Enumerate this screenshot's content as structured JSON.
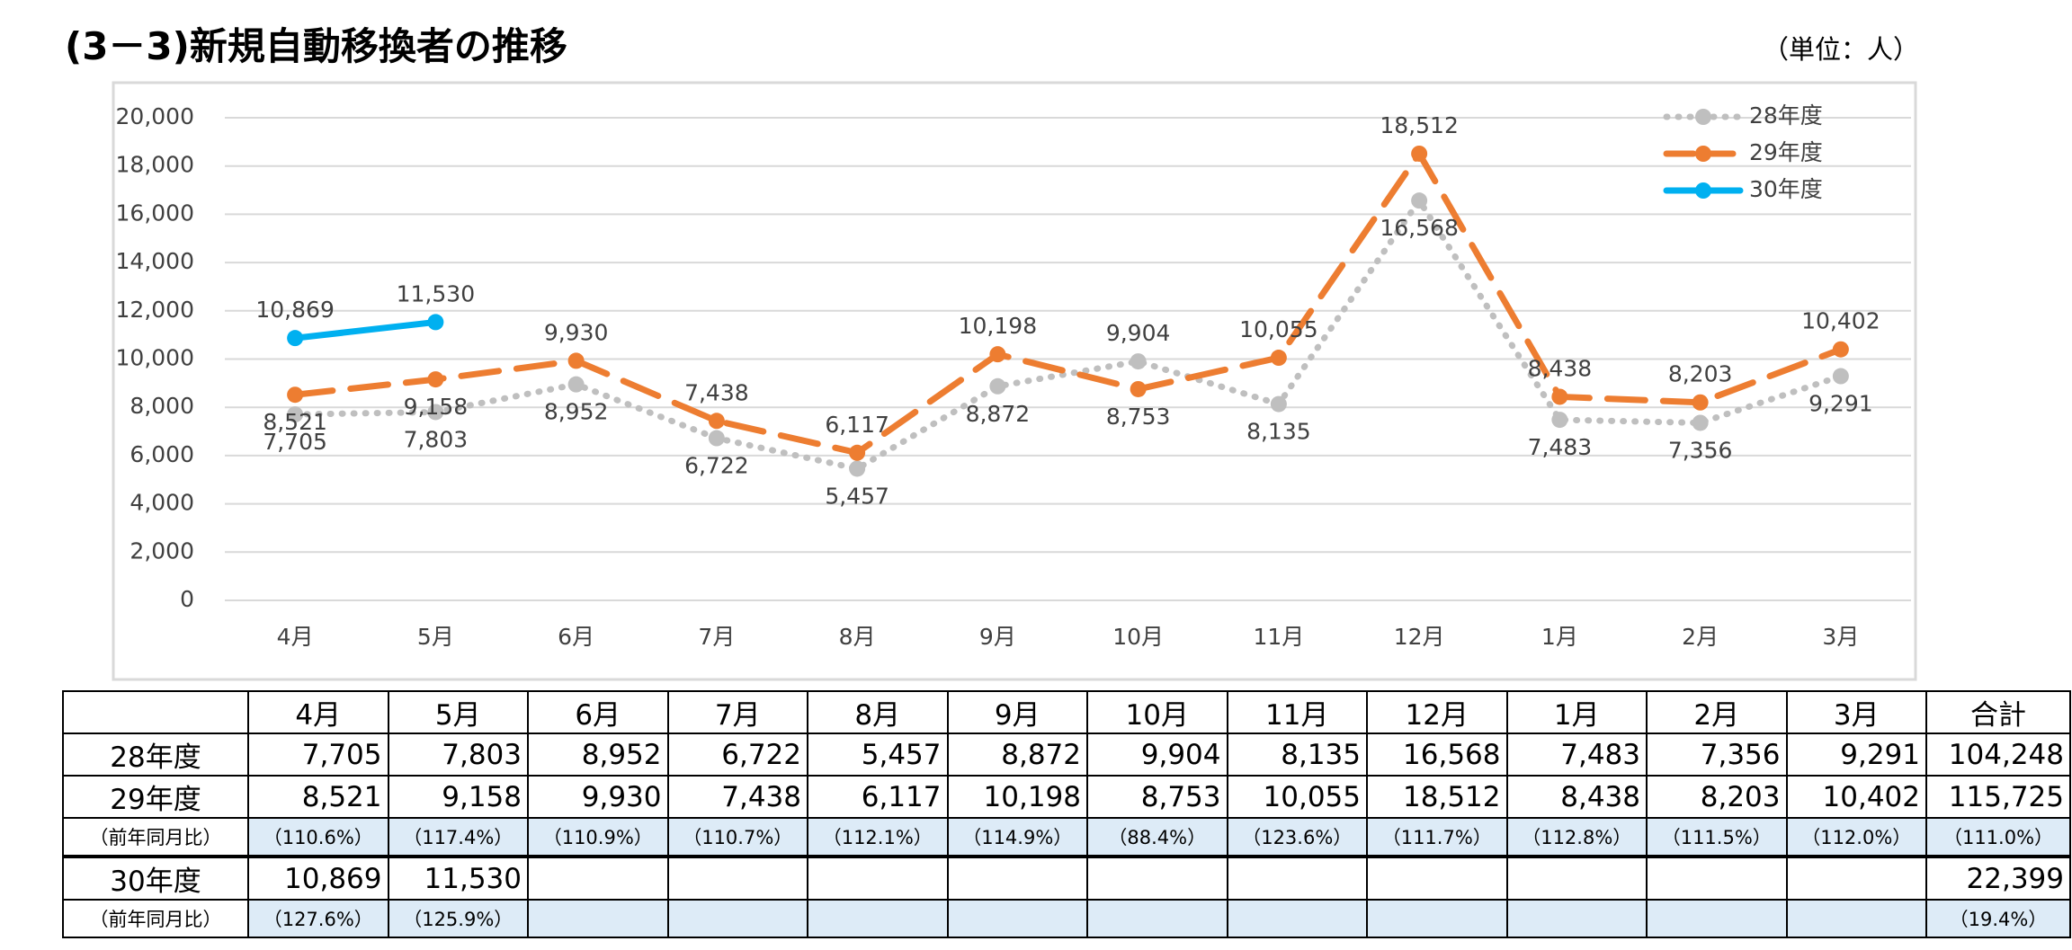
{
  "header": {
    "title": "(3－3)新規自動移換者の推移",
    "unit": "（単位：人）"
  },
  "chart_data": {
    "type": "line",
    "categories": [
      "4月",
      "5月",
      "6月",
      "7月",
      "8月",
      "9月",
      "10月",
      "11月",
      "12月",
      "1月",
      "2月",
      "3月"
    ],
    "series": [
      {
        "name": "28年度",
        "color": "#bfbfbf",
        "style": "dotted",
        "values": [
          7705,
          7803,
          8952,
          6722,
          5457,
          8872,
          9904,
          8135,
          16568,
          7483,
          7356,
          9291
        ],
        "value_labels": [
          "7,705",
          "7,803",
          "8,952",
          "6,722",
          "5,457",
          "8,872",
          "9,904",
          "8,135",
          "16,568",
          "7,483",
          "7,356",
          "9,291"
        ]
      },
      {
        "name": "29年度",
        "color": "#ed7d31",
        "style": "dashed",
        "values": [
          8521,
          9158,
          9930,
          7438,
          6117,
          10198,
          8753,
          10055,
          18512,
          8438,
          8203,
          10402
        ],
        "value_labels": [
          "8,521",
          "9,158",
          "9,930",
          "7,438",
          "6,117",
          "10,198",
          "8,753",
          "10,055",
          "18,512",
          "8,438",
          "8,203",
          "10,402"
        ]
      },
      {
        "name": "30年度",
        "color": "#00b0f0",
        "style": "solid",
        "values": [
          10869,
          11530,
          null,
          null,
          null,
          null,
          null,
          null,
          null,
          null,
          null,
          null
        ],
        "value_labels": [
          "10,869",
          "11,530",
          null,
          null,
          null,
          null,
          null,
          null,
          null,
          null,
          null,
          null
        ]
      }
    ],
    "ylim": [
      0,
      20000
    ],
    "yticks": [
      0,
      {
        "value": 2000,
        "label": "2,000"
      },
      {
        "value": 4000,
        "label": "4,000"
      },
      {
        "value": 6000,
        "label": "6,000"
      },
      {
        "value": 8000,
        "label": "8,000"
      },
      {
        "value": 10000,
        "label": "10,000"
      },
      {
        "value": 12000,
        "label": "12,000"
      },
      {
        "value": 14000,
        "label": "14,000"
      },
      {
        "value": 16000,
        "label": "16,000"
      },
      {
        "value": 18000,
        "label": "18,000"
      },
      {
        "value": 20000,
        "label": "20,000"
      }
    ],
    "grid": true,
    "legend": "upper right"
  },
  "table": {
    "columns": [
      "4月",
      "5月",
      "6月",
      "7月",
      "8月",
      "9月",
      "10月",
      "11月",
      "12月",
      "1月",
      "2月",
      "3月",
      "合計"
    ],
    "rows": [
      {
        "label": "28年度",
        "kind": "value",
        "cells": [
          "7,705",
          "7,803",
          "8,952",
          "6,722",
          "5,457",
          "8,872",
          "9,904",
          "8,135",
          "16,568",
          "7,483",
          "7,356",
          "9,291",
          "104,248"
        ]
      },
      {
        "label": "29年度",
        "kind": "value",
        "cells": [
          "8,521",
          "9,158",
          "9,930",
          "7,438",
          "6,117",
          "10,198",
          "8,753",
          "10,055",
          "18,512",
          "8,438",
          "8,203",
          "10,402",
          "115,725"
        ]
      },
      {
        "label": "（前年同月比）",
        "kind": "ratio",
        "cells": [
          "（110.6%）",
          "（117.4%）",
          "（110.9%）",
          "（110.7%）",
          "（112.1%）",
          "（114.9%）",
          "（88.4%）",
          "（123.6%）",
          "（111.7%）",
          "（112.8%）",
          "（111.5%）",
          "（112.0%）",
          "（111.0%）"
        ]
      },
      {
        "label": "30年度",
        "kind": "value",
        "cells": [
          "10,869",
          "11,530",
          null,
          null,
          null,
          null,
          null,
          null,
          null,
          null,
          null,
          null,
          "22,399"
        ]
      },
      {
        "label": "（前年同月比）",
        "kind": "ratio",
        "cells": [
          "（127.6%）",
          "（125.9%）",
          null,
          null,
          null,
          null,
          null,
          null,
          null,
          null,
          null,
          null,
          "（19.4%）"
        ]
      }
    ]
  }
}
